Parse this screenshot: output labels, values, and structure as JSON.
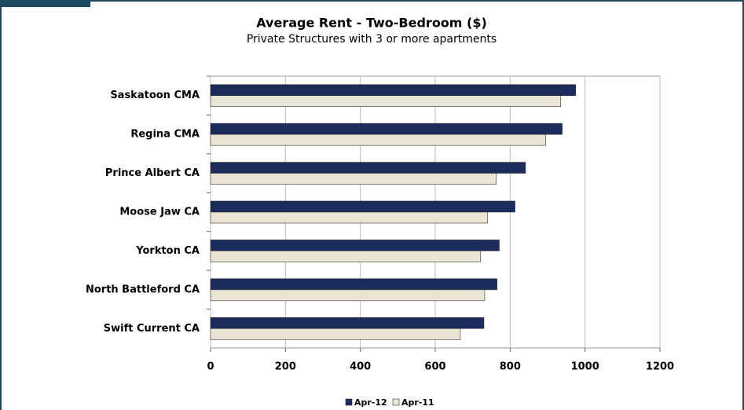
{
  "chart_data": {
    "type": "hbar",
    "title": "Average Rent - Two-Bedroom ($)",
    "subtitle": "Private Structures with 3 or more apartments",
    "categories": [
      "Saskatoon CMA",
      "Regina CMA",
      "Prince Albert CA",
      "Moose Jaw CA",
      "Yorkton CA",
      "North Battleford CA",
      "Swift Current CA"
    ],
    "series": [
      {
        "name": "Apr-12",
        "color": "#1b2b5c",
        "values": [
          975,
          939,
          841,
          813,
          771,
          765,
          730
        ]
      },
      {
        "name": "Apr-11",
        "color": "#e9e4d4",
        "values": [
          935,
          895,
          763,
          740,
          721,
          732,
          667
        ]
      }
    ],
    "xlim": [
      0,
      1200
    ],
    "xticks": [
      0,
      200,
      400,
      600,
      800,
      1000,
      1200
    ],
    "grid": true,
    "legend": "bottom"
  }
}
